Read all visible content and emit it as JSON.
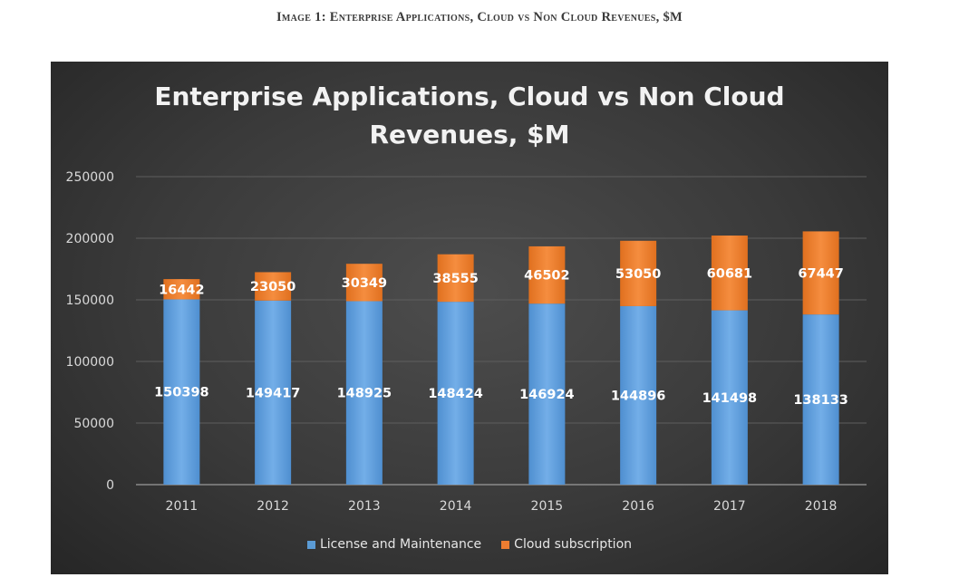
{
  "caption": "Image 1: Enterprise Applications, Cloud vs Non Cloud Revenues, $M",
  "chart_data": {
    "type": "bar",
    "stacked": true,
    "title": "Enterprise Applications, Cloud vs Non Cloud\nRevenues, $M",
    "xlabel": "",
    "ylabel": "",
    "categories": [
      "2011",
      "2012",
      "2013",
      "2014",
      "2015",
      "2016",
      "2017",
      "2018"
    ],
    "series": [
      {
        "name": "License and Maintenance",
        "color": "#5b9bd5",
        "values": [
          150398,
          149417,
          148925,
          148424,
          146924,
          144896,
          141498,
          138133
        ]
      },
      {
        "name": "Cloud subscription",
        "color": "#ed7d31",
        "values": [
          16442,
          23050,
          30349,
          38555,
          46502,
          53050,
          60681,
          67447
        ]
      }
    ],
    "ylim": [
      0,
      250000
    ],
    "yticks": [
      0,
      50000,
      100000,
      150000,
      200000,
      250000
    ],
    "data_labels": true,
    "grid": true,
    "legend_position": "bottom",
    "background": "dark"
  }
}
